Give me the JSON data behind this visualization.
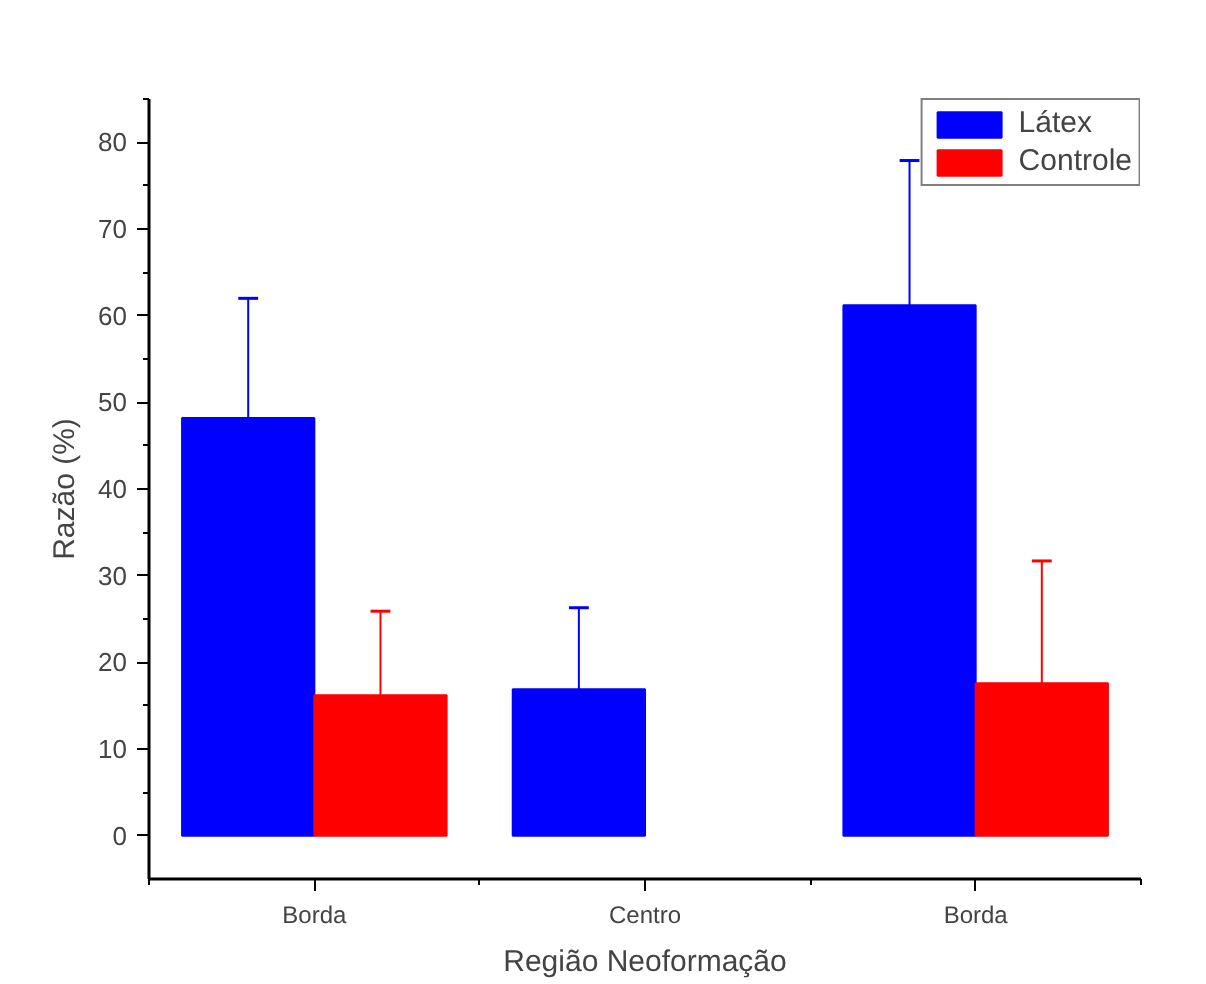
{
  "chart_data": {
    "type": "bar",
    "xlabel": "Região Neoformação",
    "ylabel": "Razão (%)",
    "categories": [
      "Borda",
      "Centro",
      "Borda"
    ],
    "series": [
      {
        "name": "Látex",
        "color": "#0000ff",
        "values": [
          48.2,
          16.9,
          61.2
        ],
        "errors": [
          [
            48.2,
            62.0
          ],
          [
            16.9,
            26.3
          ],
          [
            61.2,
            77.9
          ]
        ]
      },
      {
        "name": "Controle",
        "color": "#ff0000",
        "values": [
          16.2,
          null,
          17.6
        ],
        "errors": [
          [
            16.2,
            25.9
          ],
          null,
          [
            17.6,
            31.7
          ]
        ]
      }
    ],
    "ylim": [
      -5,
      85
    ],
    "yticks": [
      0,
      10,
      20,
      30,
      40,
      50,
      60,
      70,
      80
    ],
    "grid": false,
    "legend": "top right"
  }
}
